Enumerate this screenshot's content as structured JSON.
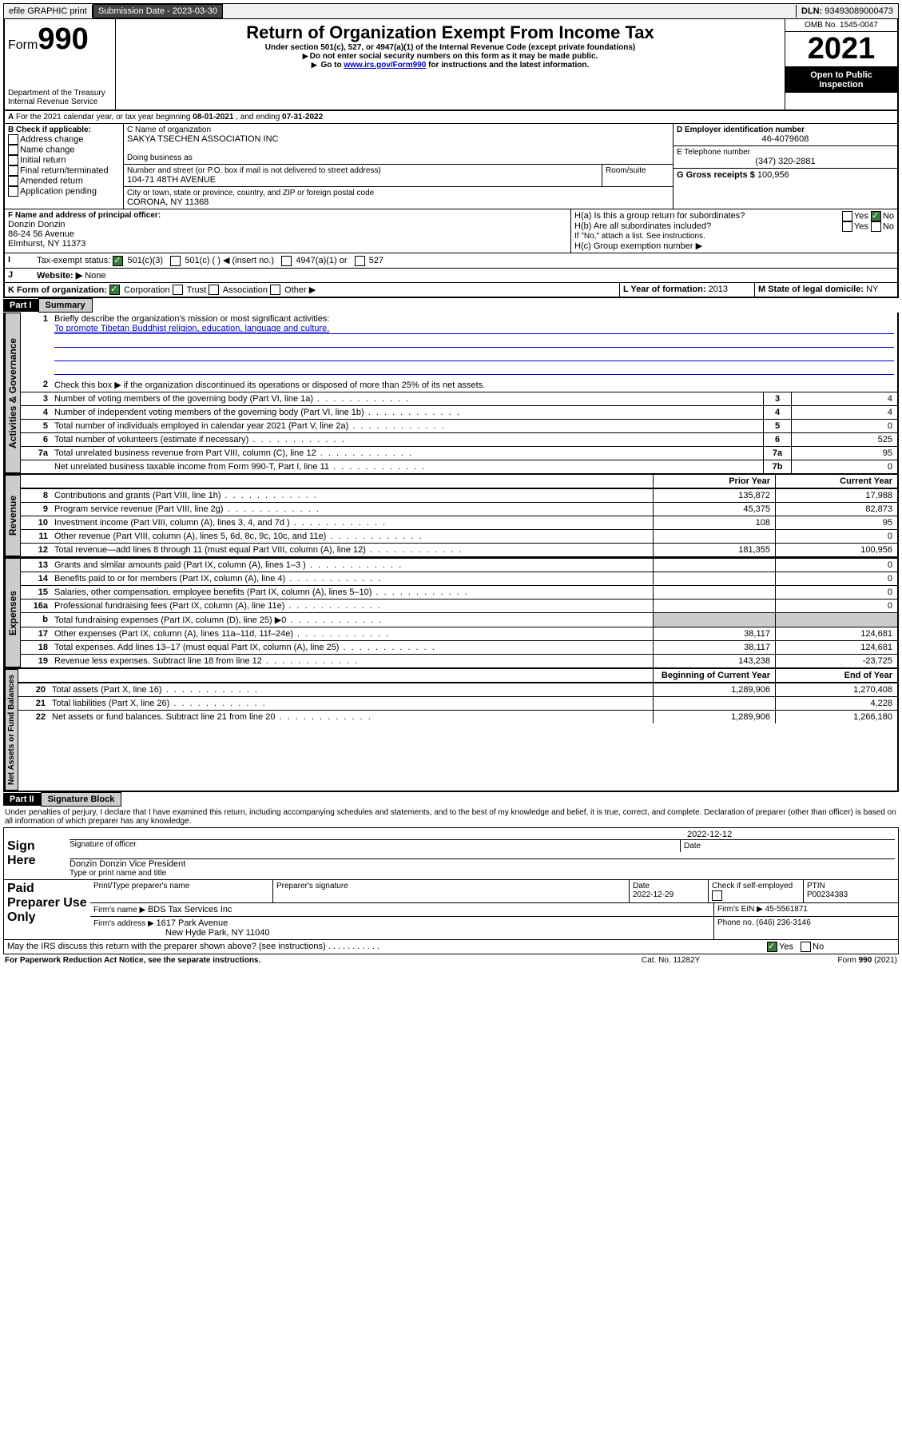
{
  "topbar": {
    "efile": "efile GRAPHIC print",
    "sub_label": "Submission Date - ",
    "sub_date": "2023-03-30",
    "dln_label": "DLN: ",
    "dln": "93493089000473"
  },
  "header": {
    "form_prefix": "Form",
    "form_num": "990",
    "dept": "Department of the Treasury",
    "irs": "Internal Revenue Service",
    "title": "Return of Organization Exempt From Income Tax",
    "sub1": "Under section 501(c), 527, or 4947(a)(1) of the Internal Revenue Code (except private foundations)",
    "sub2": "Do not enter social security numbers on this form as it may be made public.",
    "sub3_pre": "Go to ",
    "sub3_link": "www.irs.gov/Form990",
    "sub3_post": " for instructions and the latest information.",
    "omb": "OMB No. 1545-0047",
    "year": "2021",
    "open": "Open to Public Inspection"
  },
  "periodA": {
    "text": "For the 2021 calendar year, or tax year beginning ",
    "begin": "08-01-2021",
    "mid": " , and ending ",
    "end": "07-31-2022"
  },
  "boxB": {
    "title": "B Check if applicable:",
    "opts": [
      "Address change",
      "Name change",
      "Initial return",
      "Final return/terminated",
      "Amended return",
      "Application pending"
    ]
  },
  "boxC": {
    "label": "C Name of organization",
    "name": "SAKYA TSECHEN ASSOCIATION INC",
    "dba": "Doing business as",
    "addr_label": "Number and street (or P.O. box if mail is not delivered to street address)",
    "room": "Room/suite",
    "addr": "104-71 48TH AVENUE",
    "city_label": "City or town, state or province, country, and ZIP or foreign postal code",
    "city": "CORONA, NY  11368"
  },
  "boxD": {
    "label": "D Employer identification number",
    "val": "46-4079608"
  },
  "boxE": {
    "label": "E Telephone number",
    "val": "(347) 320-2881"
  },
  "boxG": {
    "label": "G Gross receipts $ ",
    "val": "100,956"
  },
  "boxF": {
    "label": "F Name and address of principal officer:",
    "name": "Donzin Donzin",
    "addr1": "86-24 56 Avenue",
    "addr2": "Elmhurst, NY  11373"
  },
  "boxH": {
    "a": "H(a)  Is this a group return for subordinates?",
    "b": "H(b)  Are all subordinates included?",
    "note": "If \"No,\" attach a list. See instructions.",
    "c": "H(c)  Group exemption number ▶",
    "yes": "Yes",
    "no": "No"
  },
  "boxI": {
    "label": "Tax-exempt status:",
    "a": "501(c)(3)",
    "b": "501(c) (  ) ◀ (insert no.)",
    "c": "4947(a)(1) or",
    "d": "527"
  },
  "boxJ": {
    "label": "Website: ▶",
    "val": "None"
  },
  "boxK": {
    "label": "K Form of organization:",
    "a": "Corporation",
    "b": "Trust",
    "c": "Association",
    "d": "Other ▶"
  },
  "boxL": {
    "label": "L Year of formation: ",
    "val": "2013"
  },
  "boxM": {
    "label": "M State of legal domicile: ",
    "val": "NY"
  },
  "part1": {
    "hdr": "Part I",
    "title": "Summary",
    "l1": "Briefly describe the organization's mission or most significant activities:",
    "mission": "To promote Tibetan Buddhist religion, education, language and culture.",
    "l2": "Check this box ▶     if the organization discontinued its operations or disposed of more than 25% of its net assets.",
    "tabs": {
      "gov": "Activities & Governance",
      "rev": "Revenue",
      "exp": "Expenses",
      "net": "Net Assets or Fund Balances"
    },
    "hdr_prior": "Prior Year",
    "hdr_curr": "Current Year",
    "hdr_beg": "Beginning of Current Year",
    "hdr_end": "End of Year",
    "rows_gov": [
      {
        "n": "3",
        "d": "Number of voting members of the governing body (Part VI, line 1a)",
        "b": "3",
        "v": "4"
      },
      {
        "n": "4",
        "d": "Number of independent voting members of the governing body (Part VI, line 1b)",
        "b": "4",
        "v": "4"
      },
      {
        "n": "5",
        "d": "Total number of individuals employed in calendar year 2021 (Part V, line 2a)",
        "b": "5",
        "v": "0"
      },
      {
        "n": "6",
        "d": "Total number of volunteers (estimate if necessary)",
        "b": "6",
        "v": "525"
      },
      {
        "n": "7a",
        "d": "Total unrelated business revenue from Part VIII, column (C), line 12",
        "b": "7a",
        "v": "95"
      },
      {
        "n": "",
        "d": "Net unrelated business taxable income from Form 990-T, Part I, line 11",
        "b": "7b",
        "v": "0"
      }
    ],
    "rows_rev": [
      {
        "n": "8",
        "d": "Contributions and grants (Part VIII, line 1h)",
        "p": "135,872",
        "c": "17,988"
      },
      {
        "n": "9",
        "d": "Program service revenue (Part VIII, line 2g)",
        "p": "45,375",
        "c": "82,873"
      },
      {
        "n": "10",
        "d": "Investment income (Part VIII, column (A), lines 3, 4, and 7d )",
        "p": "108",
        "c": "95"
      },
      {
        "n": "11",
        "d": "Other revenue (Part VIII, column (A), lines 5, 6d, 8c, 9c, 10c, and 11e)",
        "p": "",
        "c": "0"
      },
      {
        "n": "12",
        "d": "Total revenue—add lines 8 through 11 (must equal Part VIII, column (A), line 12)",
        "p": "181,355",
        "c": "100,956"
      }
    ],
    "rows_exp": [
      {
        "n": "13",
        "d": "Grants and similar amounts paid (Part IX, column (A), lines 1–3 )",
        "p": "",
        "c": "0"
      },
      {
        "n": "14",
        "d": "Benefits paid to or for members (Part IX, column (A), line 4)",
        "p": "",
        "c": "0"
      },
      {
        "n": "15",
        "d": "Salaries, other compensation, employee benefits (Part IX, column (A), lines 5–10)",
        "p": "",
        "c": "0"
      },
      {
        "n": "16a",
        "d": "Professional fundraising fees (Part IX, column (A), line 11e)",
        "p": "",
        "c": "0"
      },
      {
        "n": "b",
        "d": "Total fundraising expenses (Part IX, column (D), line 25) ▶0",
        "p": "shade",
        "c": "shade"
      },
      {
        "n": "17",
        "d": "Other expenses (Part IX, column (A), lines 11a–11d, 11f–24e)",
        "p": "38,117",
        "c": "124,681"
      },
      {
        "n": "18",
        "d": "Total expenses. Add lines 13–17 (must equal Part IX, column (A), line 25)",
        "p": "38,117",
        "c": "124,681"
      },
      {
        "n": "19",
        "d": "Revenue less expenses. Subtract line 18 from line 12",
        "p": "143,238",
        "c": "-23,725"
      }
    ],
    "rows_net": [
      {
        "n": "20",
        "d": "Total assets (Part X, line 16)",
        "p": "1,289,906",
        "c": "1,270,408"
      },
      {
        "n": "21",
        "d": "Total liabilities (Part X, line 26)",
        "p": "",
        "c": "4,228"
      },
      {
        "n": "22",
        "d": "Net assets or fund balances. Subtract line 21 from line 20",
        "p": "1,289,906",
        "c": "1,266,180"
      }
    ]
  },
  "part2": {
    "hdr": "Part II",
    "title": "Signature Block",
    "decl": "Under penalties of perjury, I declare that I have examined this return, including accompanying schedules and statements, and to the best of my knowledge and belief, it is true, correct, and complete. Declaration of preparer (other than officer) is based on all information of which preparer has any knowledge.",
    "sign_here": "Sign Here",
    "sig_officer": "Signature of officer",
    "sig_date": "Date",
    "date_val": "2022-12-12",
    "name_title": "Donzin Donzin  Vice President",
    "name_label": "Type or print name and title",
    "paid": "Paid Preparer Use Only",
    "p_name_l": "Print/Type preparer's name",
    "p_sig_l": "Preparer's signature",
    "p_date_l": "Date",
    "p_date": "2022-12-29",
    "p_check": "Check         if self-employed",
    "ptin_l": "PTIN",
    "ptin": "P00234383",
    "firm_l": "Firm's name    ▶ ",
    "firm": "BDS Tax Services Inc",
    "ein_l": "Firm's EIN ▶ ",
    "ein": "45-5561871",
    "addr_l": "Firm's address ▶ ",
    "addr": "1617 Park Avenue",
    "addr2": "New Hyde Park, NY  11040",
    "phone_l": "Phone no. ",
    "phone": "(646) 236-3146",
    "discuss": "May the IRS discuss this return with the preparer shown above? (see instructions)",
    "yes": "Yes",
    "no": "No"
  },
  "footer": {
    "left": "For Paperwork Reduction Act Notice, see the separate instructions.",
    "mid": "Cat. No. 11282Y",
    "right": "Form 990 (2021)"
  }
}
